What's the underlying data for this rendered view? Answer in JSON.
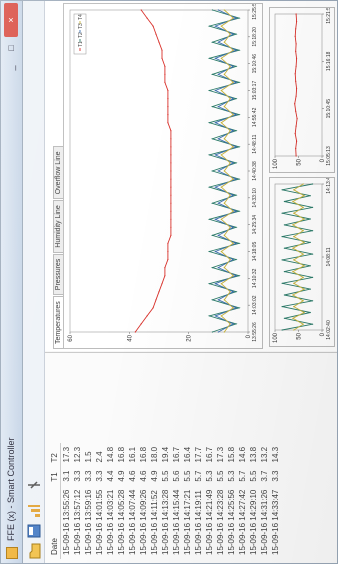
{
  "window": {
    "title": "FFE (x) - Smart Controller",
    "min_label": "_",
    "max_label": "□",
    "close_label": "×"
  },
  "toolbar": {
    "icons": [
      "folder-icon",
      "save-icon",
      "chart-icon",
      "settings-icon"
    ]
  },
  "table": {
    "headers": [
      "Date",
      "T1",
      "T2"
    ],
    "rows": [
      [
        "15-09-16 13:55:26",
        "3.1",
        "17.3"
      ],
      [
        "15-09-16 13:57:12",
        "3.3",
        "12.3"
      ],
      [
        "15-09-16 13:59:16",
        "3.3",
        "1.5"
      ],
      [
        "15-09-16 14:01:55",
        "3.3",
        "2.4"
      ],
      [
        "15-09-16 14:03:21",
        "4.4",
        "14.8"
      ],
      [
        "15-09-16 14:05:28",
        "4.9",
        "16.8"
      ],
      [
        "15-09-16 14:07:44",
        "4.6",
        "16.1"
      ],
      [
        "15-09-16 14:09:26",
        "4.6",
        "16.8"
      ],
      [
        "15-09-16 14:11:52",
        "4.9",
        "18.0"
      ],
      [
        "15-09-16 14:13:28",
        "5.5",
        "19.4"
      ],
      [
        "15-09-16 14:15:44",
        "5.6",
        "16.7"
      ],
      [
        "15-09-16 14:17:21",
        "5.5",
        "16.4"
      ],
      [
        "15-09-16 14:19:11",
        "5.7",
        "17.7"
      ],
      [
        "15-09-16 14:21:49",
        "5.3",
        "16.7"
      ],
      [
        "15-09-16 14:23:28",
        "5.5",
        "17.3"
      ],
      [
        "15-09-16 14:25:56",
        "5.3",
        "15.8"
      ],
      [
        "15-09-16 14:27:42",
        "5.7",
        "14.6"
      ],
      [
        "15-09-16 14:29:10",
        "5.5",
        "13.8"
      ],
      [
        "15-09-16 14:31:26",
        "3.7",
        "13.2"
      ],
      [
        "15-09-16 14:33:47",
        "3.3",
        "14.3"
      ]
    ]
  },
  "tabs": [
    "Temperatures",
    "Pressures",
    "Humidity Line",
    "Overflow Line"
  ],
  "colors": {
    "temp_line": "#d9302a",
    "humidity_line": "#2c7c6a",
    "pressure_line": "#c8b43a"
  },
  "chart_data": [
    {
      "type": "line",
      "legend_labels": [
        "T1",
        "T2",
        "T3",
        "T4"
      ],
      "legend_placement": "top-right",
      "ylim": [
        0,
        60
      ],
      "y_ticks": [
        "60",
        "40",
        "20",
        "0"
      ],
      "x_ticks": [
        "13:55:26",
        "14:03:02",
        "14:10:32",
        "14:18:05",
        "14:25:34",
        "14:33:10",
        "14:40:38",
        "14:48:11",
        "14:55:42",
        "15:03:17",
        "15:10:46",
        "15:18:20",
        "15:25:51"
      ],
      "x": [
        0,
        1,
        2,
        3,
        4,
        5,
        6,
        7,
        8,
        9,
        10,
        11,
        12,
        13,
        14,
        15,
        16,
        17,
        18,
        19,
        20,
        21,
        22,
        23,
        24,
        25,
        26,
        27,
        28,
        29,
        30,
        31,
        32,
        33,
        34,
        35,
        36,
        37,
        38,
        39,
        40
      ],
      "series": [
        {
          "name": "T1",
          "color": "#d9302a",
          "values": [
            38,
            36,
            34,
            32,
            31,
            30,
            29,
            28,
            28,
            27,
            27,
            27,
            26,
            26,
            26,
            26,
            26,
            26,
            26,
            26,
            26,
            26,
            26,
            26,
            26,
            26,
            27,
            27,
            27,
            27,
            27,
            28,
            28,
            28,
            29,
            29,
            30,
            31,
            32,
            34,
            36
          ]
        },
        {
          "name": "T2",
          "color": "#2c7c6a",
          "values": [
            12,
            4,
            13,
            3,
            12,
            4,
            13,
            3,
            12,
            4,
            13,
            3,
            12,
            4,
            13,
            3,
            12,
            4,
            13,
            3,
            12,
            4,
            13,
            3,
            12,
            4,
            13,
            3,
            12,
            4,
            13,
            3,
            12,
            4,
            13,
            3,
            12,
            4,
            13,
            3,
            12
          ]
        },
        {
          "name": "T3",
          "color": "#3d6fb0",
          "values": [
            10,
            5,
            11,
            4,
            10,
            5,
            11,
            4,
            10,
            5,
            11,
            4,
            10,
            5,
            11,
            4,
            10,
            5,
            11,
            4,
            10,
            5,
            11,
            4,
            10,
            5,
            11,
            4,
            10,
            5,
            11,
            4,
            10,
            5,
            11,
            4,
            10,
            5,
            11,
            4,
            10
          ]
        },
        {
          "name": "T4",
          "color": "#c8b43a",
          "values": [
            8,
            6,
            9,
            5,
            8,
            6,
            9,
            5,
            8,
            6,
            9,
            5,
            8,
            6,
            9,
            5,
            8,
            6,
            9,
            5,
            8,
            6,
            9,
            5,
            8,
            6,
            9,
            5,
            8,
            6,
            9,
            5,
            8,
            6,
            9,
            5,
            8,
            6,
            9,
            5,
            8
          ]
        }
      ]
    },
    {
      "type": "line",
      "ylim": [
        0,
        100
      ],
      "y_ticks": [
        "100",
        "50",
        "0"
      ],
      "x_ticks": [
        "14:02:40",
        "14:08:11",
        "14:13:43"
      ],
      "x": [
        0,
        1,
        2,
        3,
        4,
        5,
        6,
        7,
        8,
        9,
        10,
        11,
        12,
        13,
        14,
        15,
        16,
        17,
        18,
        19,
        20,
        21,
        22,
        23,
        24,
        25
      ],
      "series": [
        {
          "color": "#2c7c6a",
          "values": [
            85,
            20,
            80,
            25,
            85,
            20,
            80,
            25,
            85,
            20,
            80,
            25,
            85,
            20,
            80,
            25,
            85,
            20,
            80,
            25,
            85,
            20,
            80,
            25,
            85,
            20
          ]
        },
        {
          "color": "#c8b43a",
          "values": [
            60,
            40,
            62,
            38,
            60,
            40,
            62,
            38,
            60,
            40,
            62,
            38,
            60,
            40,
            62,
            38,
            60,
            40,
            62,
            38,
            60,
            40,
            62,
            38,
            60,
            40
          ]
        }
      ]
    },
    {
      "type": "line",
      "ylim": [
        0,
        100
      ],
      "y_ticks": [
        "100",
        "50",
        "0"
      ],
      "x_ticks": [
        "15:05:13",
        "15:10:45",
        "15:16:18",
        "15:21:50"
      ],
      "x": [
        0,
        1,
        2,
        3,
        4,
        5,
        6,
        7,
        8,
        9,
        10,
        11,
        12,
        13,
        14,
        15,
        16,
        17,
        18,
        19
      ],
      "series": [
        {
          "color": "#d9302a",
          "values": [
            55,
            56,
            54,
            57,
            55,
            53,
            56,
            58,
            55,
            54,
            56,
            57,
            55,
            54,
            56,
            55,
            57,
            56,
            54,
            55
          ]
        }
      ]
    }
  ]
}
